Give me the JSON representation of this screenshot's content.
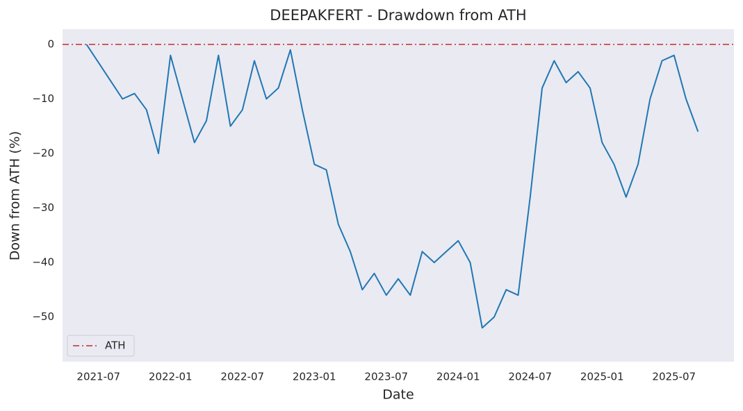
{
  "chart_data": {
    "type": "line",
    "title": "DEEPAKFERT - Drawdown from ATH",
    "x_label": "Date",
    "y_label": "Down from ATH (%)",
    "x": [
      "2021-06",
      "2021-09",
      "2021-10",
      "2021-11",
      "2021-12",
      "2022-01",
      "2022-02",
      "2022-03",
      "2022-04",
      "2022-05",
      "2022-06",
      "2022-07",
      "2022-08",
      "2022-09",
      "2022-10",
      "2022-11",
      "2022-12",
      "2023-01",
      "2023-02",
      "2023-03",
      "2023-04",
      "2023-05",
      "2023-06",
      "2023-07",
      "2023-08",
      "2023-09",
      "2023-10",
      "2023-11",
      "2023-12",
      "2024-01",
      "2024-02",
      "2024-03",
      "2024-04",
      "2024-05",
      "2024-06",
      "2024-07",
      "2024-08",
      "2024-09",
      "2024-10",
      "2024-11",
      "2024-12",
      "2025-01",
      "2025-02",
      "2025-03",
      "2025-04",
      "2025-05",
      "2025-06",
      "2025-07",
      "2025-08",
      "2025-09"
    ],
    "series": [
      {
        "color": "#1f77b4",
        "values": [
          0,
          -10,
          -9,
          -12,
          -20,
          -2,
          -10,
          -18,
          -14,
          -2,
          -15,
          -12,
          -3,
          -10,
          -8,
          -1,
          -12,
          -22,
          -23,
          -33,
          -38,
          -45,
          -42,
          -46,
          -43,
          -46,
          -38,
          -40,
          -38,
          -36,
          -40,
          -52,
          -50,
          -45,
          -46,
          -28,
          -8,
          -3,
          -7,
          -5,
          -8,
          -18,
          -22,
          -28,
          -22,
          -10,
          -3,
          -2,
          -10,
          -16
        ]
      }
    ],
    "hlines": [
      {
        "name": "ATH",
        "value": 0,
        "color": "#cd5c5c"
      }
    ],
    "xlim": [
      "2021-04",
      "2025-12"
    ],
    "xticks": [
      "2021-07",
      "2022-01",
      "2022-07",
      "2023-01",
      "2023-07",
      "2024-01",
      "2024-07",
      "2025-01",
      "2025-07"
    ],
    "ylim": [
      -58.2,
      2.8
    ],
    "yticks": [
      {
        "value": -50,
        "label": "−50"
      },
      {
        "value": -40,
        "label": "−40"
      },
      {
        "value": -30,
        "label": "−30"
      },
      {
        "value": -20,
        "label": "−20"
      },
      {
        "value": -10,
        "label": "−10"
      },
      0
    ],
    "grid": false,
    "legend": "lower left"
  }
}
